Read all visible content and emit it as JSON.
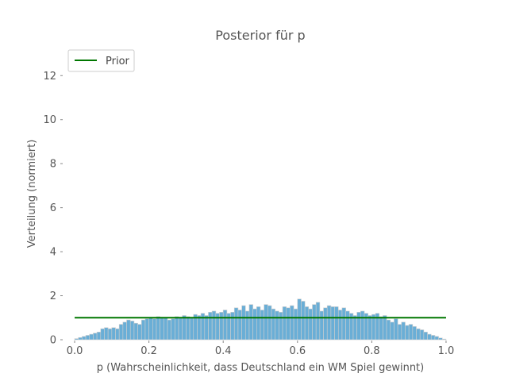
{
  "chart_data": {
    "type": "bar",
    "title": "Posterior für p",
    "xlabel": "p (Wahrscheinlichkeit, dass Deutschland ein WM Spiel gewinnt)",
    "ylabel": "Verteilung (normiert)",
    "xlim": [
      -0.03,
      1.03
    ],
    "ylim": [
      0,
      13.2
    ],
    "xticks": [
      "0.0",
      "0.2",
      "0.4",
      "0.6",
      "0.8",
      "1.0"
    ],
    "yticks": [
      "0",
      "2",
      "4",
      "6",
      "8",
      "10",
      "12"
    ],
    "grid": false,
    "legend_position": "top-left",
    "bar_width": 0.01,
    "bar_color": "#6aaed6",
    "bar_edge_color": "#cfcfcf",
    "x": [
      0.005,
      0.015,
      0.025,
      0.035,
      0.045,
      0.055,
      0.065,
      0.075,
      0.085,
      0.095,
      0.105,
      0.115,
      0.125,
      0.135,
      0.145,
      0.155,
      0.165,
      0.175,
      0.185,
      0.195,
      0.205,
      0.215,
      0.225,
      0.235,
      0.245,
      0.255,
      0.265,
      0.275,
      0.285,
      0.295,
      0.305,
      0.315,
      0.325,
      0.335,
      0.345,
      0.355,
      0.365,
      0.375,
      0.385,
      0.395,
      0.405,
      0.415,
      0.425,
      0.435,
      0.445,
      0.455,
      0.465,
      0.475,
      0.485,
      0.495,
      0.505,
      0.515,
      0.525,
      0.535,
      0.545,
      0.555,
      0.565,
      0.575,
      0.585,
      0.595,
      0.605,
      0.615,
      0.625,
      0.635,
      0.645,
      0.655,
      0.665,
      0.675,
      0.685,
      0.695,
      0.705,
      0.715,
      0.725,
      0.735,
      0.745,
      0.755,
      0.765,
      0.775,
      0.785,
      0.795,
      0.805,
      0.815,
      0.825,
      0.835,
      0.845,
      0.855,
      0.865,
      0.875,
      0.885,
      0.895,
      0.905,
      0.915,
      0.925,
      0.935,
      0.945,
      0.955,
      0.965,
      0.975,
      0.985,
      0.995
    ],
    "series": [
      {
        "values": [
          0.05,
          0.1,
          0.15,
          0.2,
          0.25,
          0.3,
          0.35,
          0.5,
          0.55,
          0.5,
          0.55,
          0.5,
          0.7,
          0.8,
          0.9,
          0.85,
          0.75,
          0.7,
          0.9,
          0.95,
          1.0,
          0.95,
          1.05,
          1.0,
          1.0,
          0.9,
          0.95,
          1.05,
          1.0,
          1.1,
          1.05,
          1.0,
          1.15,
          1.1,
          1.2,
          1.1,
          1.25,
          1.3,
          1.2,
          1.25,
          1.35,
          1.2,
          1.25,
          1.45,
          1.35,
          1.55,
          1.3,
          1.6,
          1.4,
          1.5,
          1.35,
          1.6,
          1.55,
          1.4,
          1.3,
          1.25,
          1.5,
          1.45,
          1.55,
          1.4,
          1.85,
          1.75,
          1.5,
          1.4,
          1.6,
          1.7,
          1.3,
          1.45,
          1.55,
          1.5,
          1.5,
          1.35,
          1.45,
          1.3,
          1.2,
          1.1,
          1.25,
          1.3,
          1.2,
          1.1,
          1.15,
          1.2,
          1.05,
          1.1,
          0.9,
          0.8,
          0.95,
          0.7,
          0.8,
          0.65,
          0.7,
          0.6,
          0.5,
          0.45,
          0.35,
          0.25,
          0.2,
          0.15,
          0.08,
          0.03
        ]
      }
    ],
    "prior": {
      "name": "Prior",
      "color": "#007700",
      "x": [
        0.0,
        1.0
      ],
      "y": [
        1.0,
        1.0
      ]
    }
  }
}
